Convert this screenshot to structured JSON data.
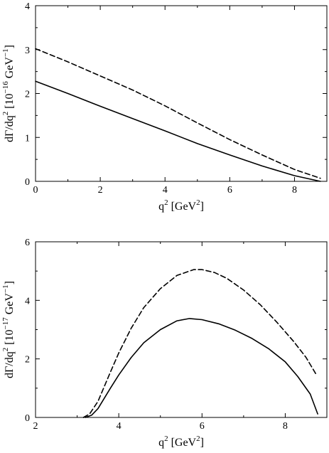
{
  "chart_data": [
    {
      "type": "line",
      "title": "",
      "xlabel": {
        "base": "q",
        "exp": "2",
        "rest": " [GeV",
        "unit_exp": "2",
        "close": "]"
      },
      "ylabel": {
        "a": "dΓ/dq",
        "a_exp": "2",
        "b": " [10",
        "b_exp": "−16",
        "c": " GeV",
        "c_exp": "−1",
        "d": "]"
      },
      "xlim": [
        0,
        9
      ],
      "ylim": [
        0,
        4
      ],
      "xticks": [
        0,
        2,
        4,
        6,
        8
      ],
      "yticks": [
        0,
        1,
        2,
        3,
        4
      ],
      "grid": false,
      "series": [
        {
          "style": "dashed",
          "x": [
            0,
            1,
            2,
            3,
            4,
            5,
            6,
            7,
            8,
            8.8
          ],
          "y": [
            3.02,
            2.72,
            2.4,
            2.08,
            1.72,
            1.33,
            0.95,
            0.6,
            0.27,
            0.07
          ]
        },
        {
          "style": "solid",
          "x": [
            0,
            1,
            2,
            3,
            4,
            5,
            6,
            7,
            8,
            8.8
          ],
          "y": [
            2.28,
            2.0,
            1.71,
            1.43,
            1.15,
            0.86,
            0.6,
            0.35,
            0.13,
            0.0
          ]
        }
      ]
    },
    {
      "type": "line",
      "title": "",
      "xlabel": {
        "base": "q",
        "exp": "2",
        "rest": " [GeV",
        "unit_exp": "2",
        "close": "]"
      },
      "ylabel": {
        "a": "dΓ/dq",
        "a_exp": "2",
        "b": " [10",
        "b_exp": "−17",
        "c": " GeV",
        "c_exp": "−1",
        "d": "]"
      },
      "xlim": [
        2,
        9
      ],
      "ylim": [
        0,
        6
      ],
      "xticks": [
        2,
        4,
        6,
        8
      ],
      "yticks": [
        0,
        2,
        4,
        6
      ],
      "grid": false,
      "series": [
        {
          "style": "dashed",
          "x": [
            3.15,
            3.3,
            3.5,
            3.8,
            4.0,
            4.3,
            4.6,
            5.0,
            5.4,
            5.8,
            6.0,
            6.3,
            6.6,
            7.0,
            7.4,
            7.8,
            8.2,
            8.5,
            8.75
          ],
          "y": [
            0.0,
            0.12,
            0.55,
            1.55,
            2.2,
            3.05,
            3.75,
            4.4,
            4.85,
            5.05,
            5.05,
            4.95,
            4.75,
            4.35,
            3.85,
            3.25,
            2.6,
            2.05,
            1.45
          ]
        },
        {
          "style": "solid",
          "x": [
            3.2,
            3.35,
            3.5,
            3.8,
            4.0,
            4.3,
            4.6,
            5.0,
            5.4,
            5.7,
            6.0,
            6.4,
            6.8,
            7.2,
            7.6,
            8.0,
            8.3,
            8.6,
            8.78
          ],
          "y": [
            0.0,
            0.08,
            0.3,
            1.0,
            1.45,
            2.05,
            2.55,
            3.0,
            3.3,
            3.38,
            3.34,
            3.2,
            2.98,
            2.7,
            2.35,
            1.9,
            1.4,
            0.8,
            0.12
          ]
        }
      ]
    }
  ]
}
